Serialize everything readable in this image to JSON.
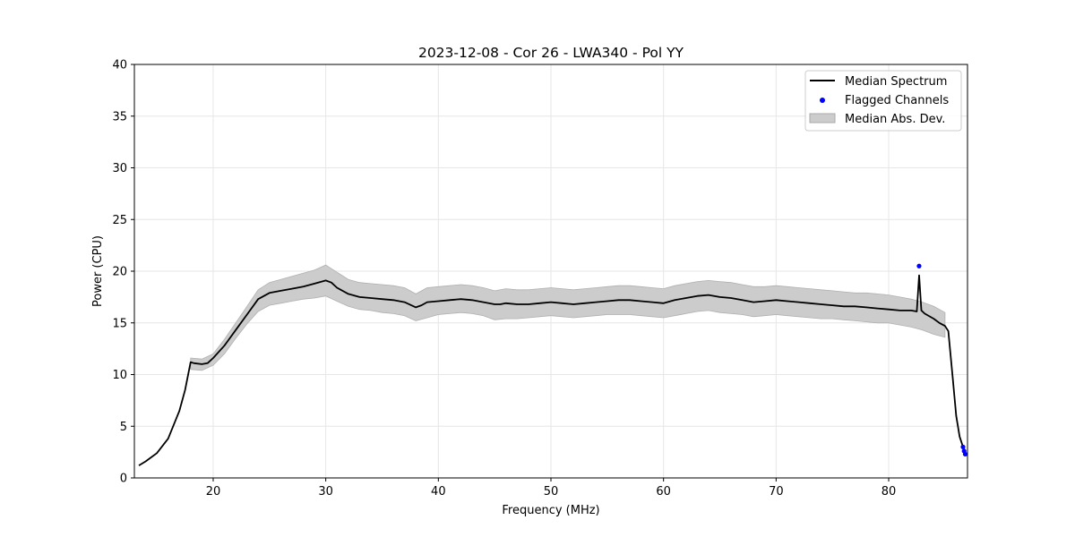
{
  "chart_data": {
    "type": "line",
    "title": "2023-12-08 - Cor 26 - LWA340 - Pol YY",
    "xlabel": "Frequency (MHz)",
    "ylabel": "Power (CPU)",
    "xlim": [
      13.0,
      87.0
    ],
    "ylim": [
      0,
      40
    ],
    "xticks": [
      20,
      30,
      40,
      50,
      60,
      70,
      80
    ],
    "yticks": [
      0,
      5,
      10,
      15,
      20,
      25,
      30,
      35,
      40
    ],
    "grid": true,
    "legend_position": "top-right",
    "series": [
      {
        "name": "Median Spectrum",
        "kind": "line",
        "color": "#000000",
        "x": [
          13.4,
          14.0,
          15.0,
          16.0,
          17.0,
          17.5,
          18.0,
          18.3,
          19.0,
          19.5,
          20.0,
          21.0,
          22.0,
          23.0,
          24.0,
          25.0,
          26.0,
          27.0,
          28.0,
          29.0,
          30.0,
          30.5,
          31.0,
          32.0,
          33.0,
          34.0,
          35.0,
          36.0,
          37.0,
          38.0,
          38.5,
          39.0,
          40.0,
          41.0,
          42.0,
          43.0,
          44.0,
          45.0,
          45.5,
          46.0,
          47.0,
          48.0,
          49.0,
          50.0,
          51.0,
          52.0,
          53.0,
          54.0,
          55.0,
          56.0,
          57.0,
          58.0,
          59.0,
          60.0,
          61.0,
          62.0,
          63.0,
          64.0,
          65.0,
          66.0,
          67.0,
          68.0,
          69.0,
          70.0,
          71.0,
          72.0,
          73.0,
          74.0,
          75.0,
          76.0,
          77.0,
          78.0,
          79.0,
          80.0,
          81.0,
          82.0,
          82.5,
          82.7,
          82.9,
          83.2,
          84.0,
          84.5,
          85.0,
          85.3,
          85.7,
          86.0,
          86.3,
          86.6,
          86.8
        ],
        "y": [
          1.2,
          1.6,
          2.4,
          3.8,
          6.5,
          8.5,
          11.2,
          11.1,
          11.0,
          11.1,
          11.6,
          12.8,
          14.3,
          15.8,
          17.3,
          17.9,
          18.1,
          18.3,
          18.5,
          18.8,
          19.1,
          18.9,
          18.4,
          17.8,
          17.5,
          17.4,
          17.3,
          17.2,
          17.0,
          16.5,
          16.7,
          17.0,
          17.1,
          17.2,
          17.3,
          17.2,
          17.0,
          16.8,
          16.8,
          16.9,
          16.8,
          16.8,
          16.9,
          17.0,
          16.9,
          16.8,
          16.9,
          17.0,
          17.1,
          17.2,
          17.2,
          17.1,
          17.0,
          16.9,
          17.2,
          17.4,
          17.6,
          17.7,
          17.5,
          17.4,
          17.2,
          17.0,
          17.1,
          17.2,
          17.1,
          17.0,
          16.9,
          16.8,
          16.7,
          16.6,
          16.6,
          16.5,
          16.4,
          16.3,
          16.2,
          16.2,
          16.1,
          19.6,
          16.2,
          15.9,
          15.4,
          15.0,
          14.7,
          14.2,
          9.5,
          6.0,
          4.0,
          3.0,
          2.6
        ]
      },
      {
        "name": "Flagged Channels",
        "kind": "scatter",
        "color": "#0000ff",
        "x": [
          82.7,
          86.6,
          86.7,
          86.8
        ],
        "y": [
          20.5,
          3.0,
          2.6,
          2.3
        ]
      },
      {
        "name": "Median Abs. Dev.",
        "kind": "band",
        "color": "#cccccc",
        "x": [
          18.0,
          19.0,
          20.0,
          21.0,
          22.0,
          23.0,
          24.0,
          25.0,
          26.0,
          27.0,
          28.0,
          29.0,
          30.0,
          31.0,
          32.0,
          33.0,
          34.0,
          35.0,
          36.0,
          37.0,
          38.0,
          39.0,
          40.0,
          41.0,
          42.0,
          43.0,
          44.0,
          45.0,
          46.0,
          47.0,
          48.0,
          49.0,
          50.0,
          51.0,
          52.0,
          53.0,
          54.0,
          55.0,
          56.0,
          57.0,
          58.0,
          59.0,
          60.0,
          61.0,
          62.0,
          63.0,
          64.0,
          65.0,
          66.0,
          67.0,
          68.0,
          69.0,
          70.0,
          71.0,
          72.0,
          73.0,
          74.0,
          75.0,
          76.0,
          77.0,
          78.0,
          79.0,
          80.0,
          81.0,
          82.0,
          83.0,
          84.0,
          85.0
        ],
        "lower": [
          10.5,
          10.4,
          10.9,
          12.0,
          13.5,
          14.9,
          16.1,
          16.7,
          16.9,
          17.1,
          17.3,
          17.4,
          17.6,
          17.1,
          16.6,
          16.3,
          16.2,
          16.0,
          15.9,
          15.7,
          15.2,
          15.5,
          15.8,
          15.9,
          16.0,
          15.9,
          15.7,
          15.3,
          15.4,
          15.4,
          15.5,
          15.6,
          15.7,
          15.6,
          15.5,
          15.6,
          15.7,
          15.8,
          15.8,
          15.8,
          15.7,
          15.6,
          15.5,
          15.7,
          15.9,
          16.1,
          16.2,
          16.0,
          15.9,
          15.8,
          15.6,
          15.7,
          15.8,
          15.7,
          15.6,
          15.5,
          15.4,
          15.4,
          15.3,
          15.2,
          15.1,
          15.0,
          15.0,
          14.8,
          14.6,
          14.3,
          13.9,
          13.6
        ],
        "upper": [
          11.6,
          11.5,
          12.0,
          13.4,
          15.0,
          16.6,
          18.2,
          18.9,
          19.2,
          19.5,
          19.8,
          20.1,
          20.6,
          19.9,
          19.2,
          18.9,
          18.8,
          18.7,
          18.6,
          18.4,
          17.8,
          18.4,
          18.5,
          18.6,
          18.7,
          18.6,
          18.4,
          18.1,
          18.3,
          18.2,
          18.2,
          18.3,
          18.4,
          18.3,
          18.2,
          18.3,
          18.4,
          18.5,
          18.6,
          18.6,
          18.5,
          18.4,
          18.3,
          18.6,
          18.8,
          19.0,
          19.1,
          19.0,
          18.9,
          18.7,
          18.5,
          18.5,
          18.6,
          18.5,
          18.4,
          18.3,
          18.2,
          18.1,
          18.0,
          17.9,
          17.9,
          17.8,
          17.7,
          17.5,
          17.3,
          17.0,
          16.6,
          16.0
        ]
      }
    ]
  }
}
